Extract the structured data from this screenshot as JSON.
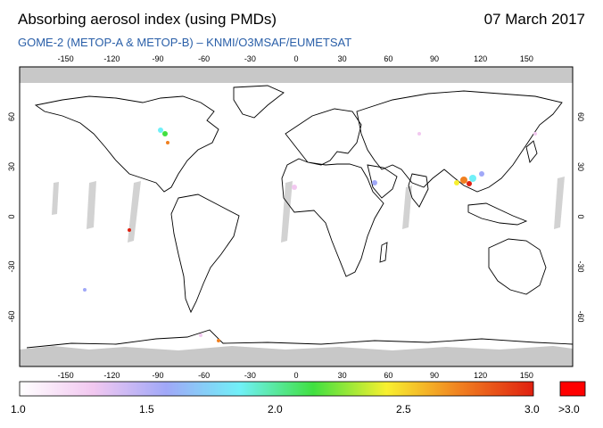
{
  "header": {
    "title": "Absorbing aerosol index (using PMDs)",
    "date": "07 March 2017",
    "subtitle": "GOME-2 (METOP-A & METOP-B)  –  KNMI/O3MSAF/EUMETSAT"
  },
  "map": {
    "lon_ticks": [
      "-150",
      "-120",
      "-90",
      "-60",
      "-30",
      "0",
      "30",
      "60",
      "90",
      "120",
      "150"
    ],
    "lat_ticks": [
      "60",
      "30",
      "0",
      "-30",
      "-60"
    ],
    "lon_range": [
      -180,
      180
    ],
    "lat_range": [
      -90,
      90
    ],
    "no_data_color": "#c8c8c8",
    "coast_color": "#000000"
  },
  "colorbar": {
    "labels": [
      "1.0",
      "1.5",
      "2.0",
      "2.5",
      "3.0"
    ],
    "overflow_label": ">3.0",
    "colors": [
      "#ffffff",
      "#f2c8f0",
      "#a0a8f8",
      "#70f0f8",
      "#40e040",
      "#f8f030",
      "#f08020",
      "#e02010"
    ],
    "overflow_color": "#ff0000"
  }
}
